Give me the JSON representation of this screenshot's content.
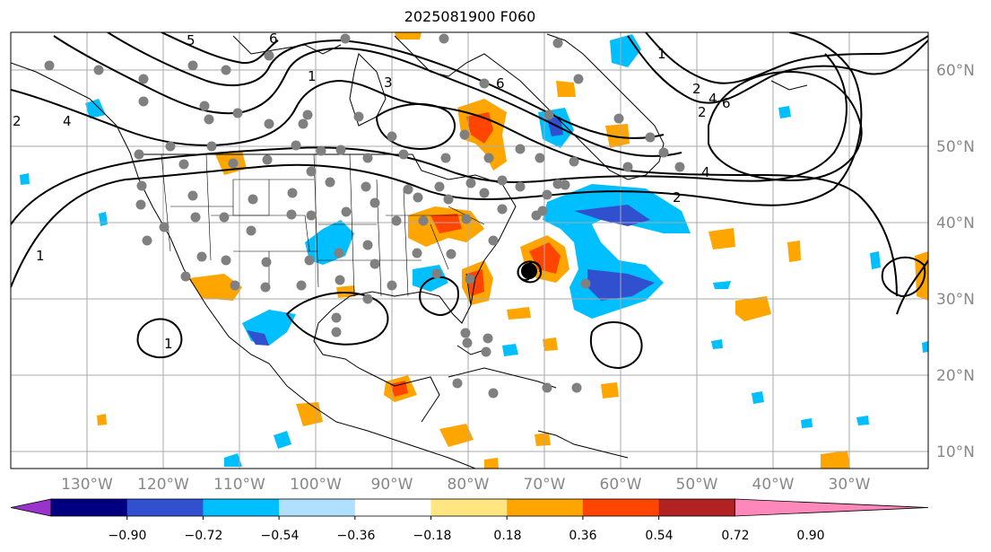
{
  "title": "2025081900 F060",
  "map": {
    "lat_labels": [
      "60°N",
      "50°N",
      "40°N",
      "30°N",
      "20°N",
      "10°N"
    ],
    "lon_labels": [
      "130°W",
      "120°W",
      "110°W",
      "100°W",
      "90°W",
      "80°W",
      "70°W",
      "60°W",
      "50°W",
      "40°W",
      "30°W"
    ],
    "contour_labels": [
      "1",
      "3",
      "5",
      "6",
      "2",
      "4",
      "6",
      "2",
      "4",
      "1",
      "1",
      "2",
      "1",
      "2",
      "4",
      "6"
    ],
    "storm_marker": "tropical-cyclone-symbol"
  },
  "colorbar": {
    "ticks": [
      "−0.90",
      "−0.72",
      "−0.54",
      "−0.36",
      "−0.18",
      "0.18",
      "0.36",
      "0.54",
      "0.72",
      "0.90"
    ],
    "colors": [
      "#9933cc",
      "#000080",
      "#3050d0",
      "#00bfff",
      "#b0e0ff",
      "#ffffff",
      "#ffe680",
      "#ffa500",
      "#ff4500",
      "#b22222",
      "#ff88bb"
    ],
    "extend": "both"
  }
}
